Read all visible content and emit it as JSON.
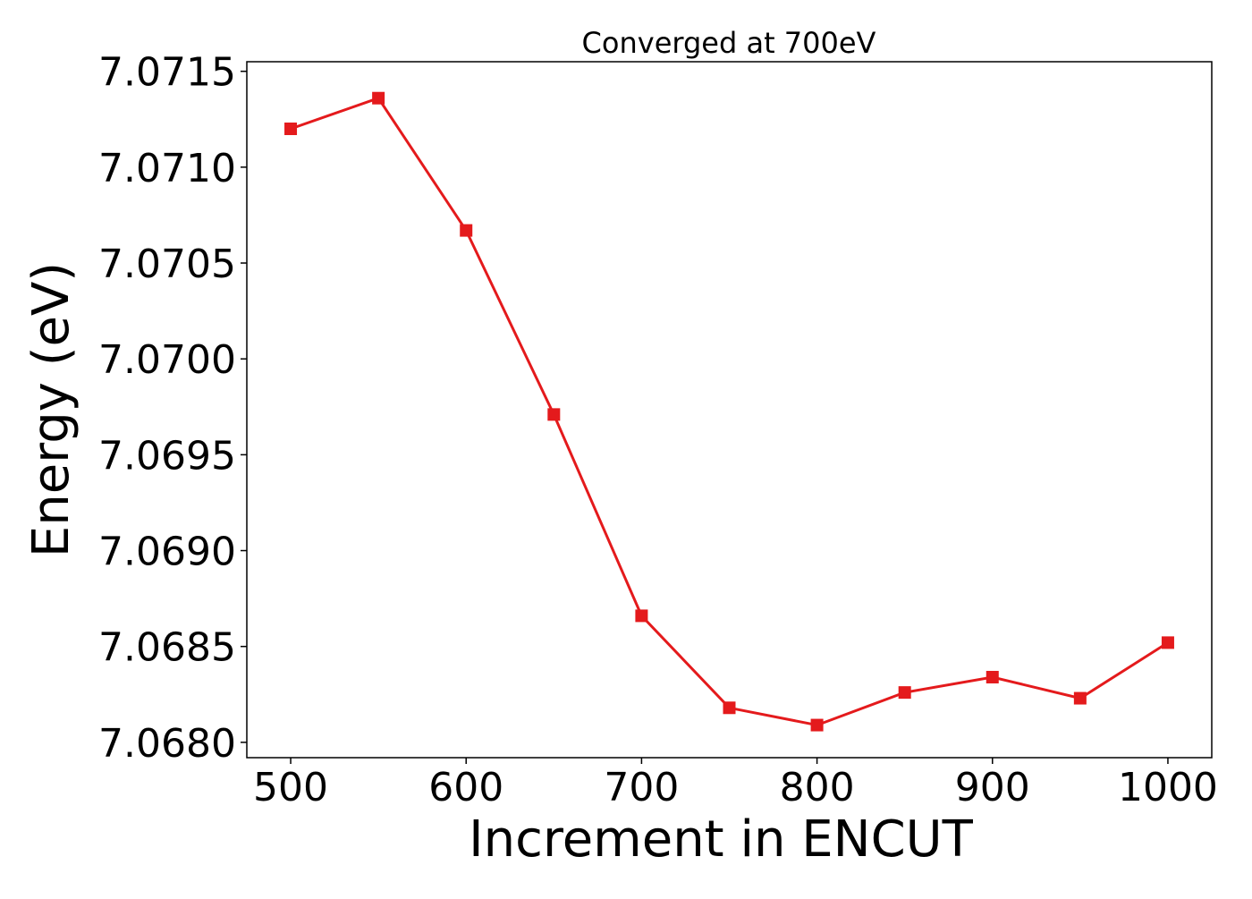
{
  "chart_data": {
    "type": "line",
    "title": "Converged at 700eV",
    "xlabel": "Increment in ENCUT",
    "ylabel": "Energy (eV)",
    "xlim": [
      475,
      1025
    ],
    "ylim": [
      7.06792,
      7.07155
    ],
    "x_ticks": [
      "500",
      "600",
      "700",
      "800",
      "900",
      "1000"
    ],
    "y_ticks": [
      "7.0680",
      "7.0685",
      "7.0690",
      "7.0695",
      "7.0700",
      "7.0705",
      "7.0710",
      "7.0715"
    ],
    "grid": false,
    "legend": "none",
    "series": [
      {
        "color": "#e41a1c",
        "marker": "square",
        "x": [
          500,
          550,
          600,
          650,
          700,
          750,
          800,
          850,
          900,
          950,
          1000
        ],
        "y": [
          7.0712,
          7.07136,
          7.07067,
          7.06971,
          7.06866,
          7.06818,
          7.06809,
          7.06826,
          7.06834,
          7.06823,
          7.06852
        ]
      }
    ]
  }
}
